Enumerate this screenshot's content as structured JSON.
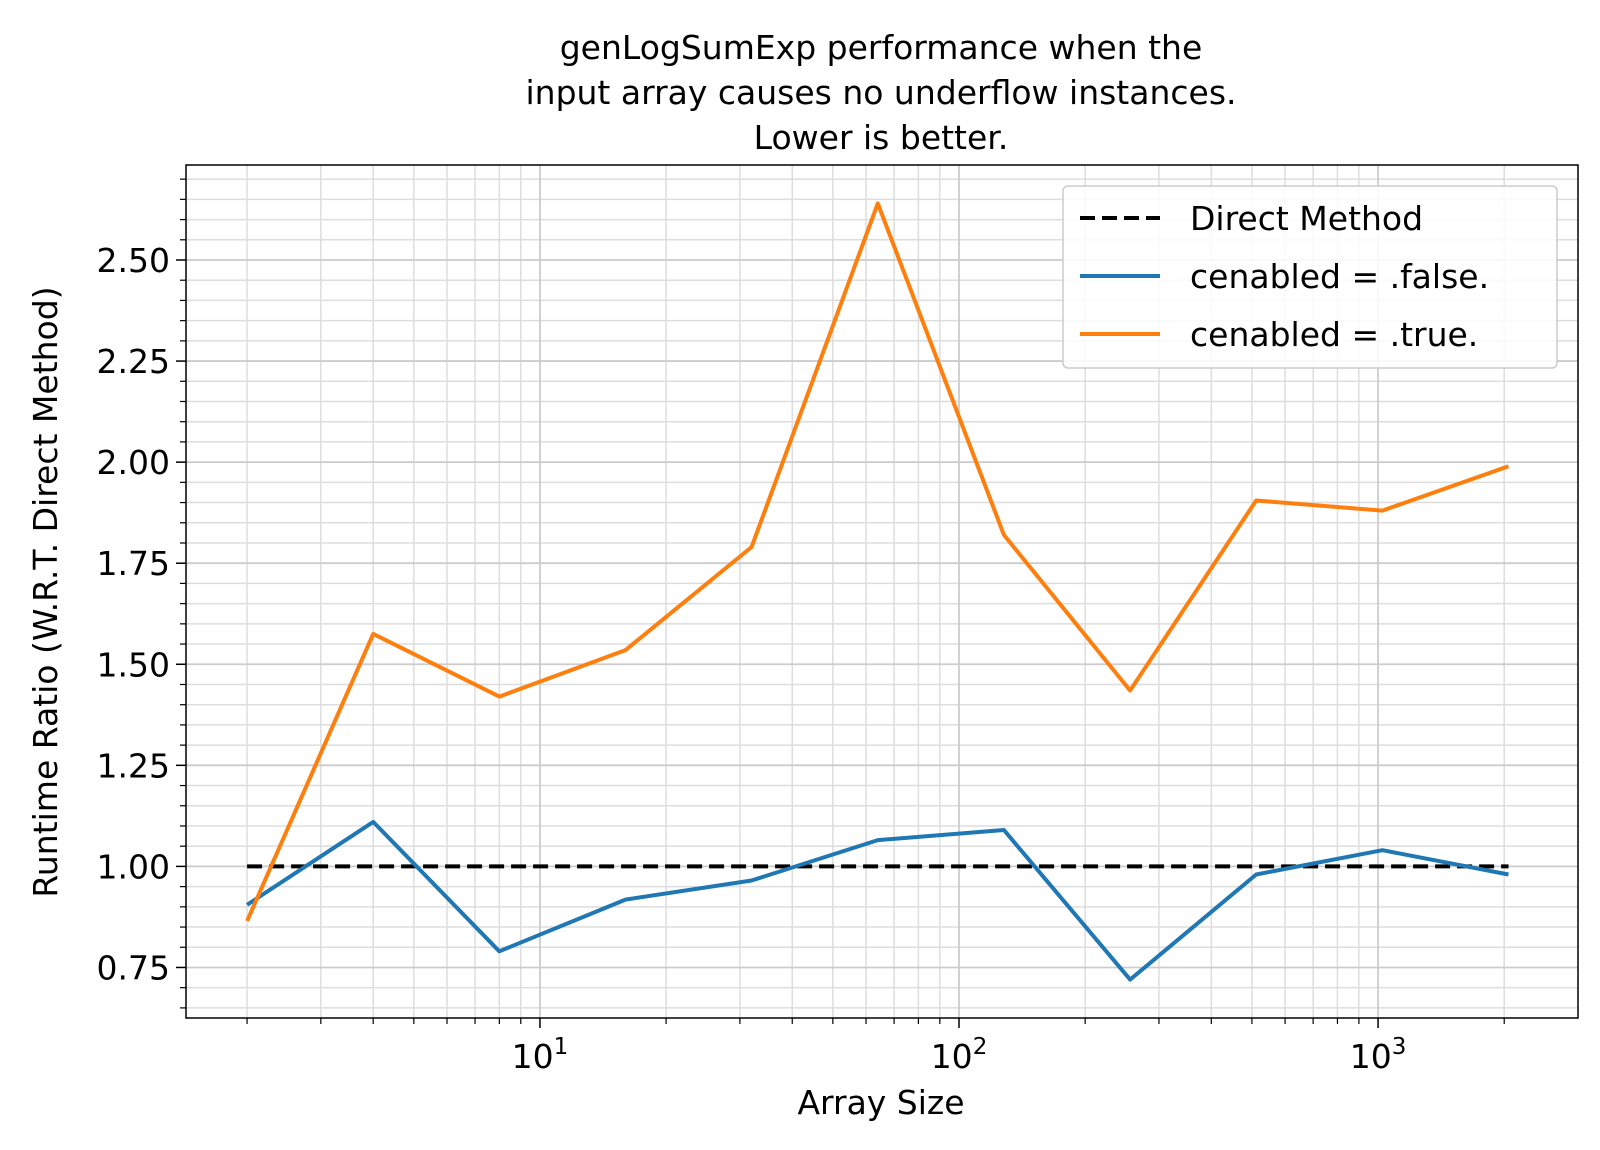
{
  "chart_data": {
    "type": "line",
    "title_lines": [
      "genLogSumExp performance when the",
      "input array causes no underflow instances.",
      "Lower is better."
    ],
    "xlabel": "Array Size",
    "ylabel": "Runtime Ratio (W.R.T. Direct Method)",
    "xscale": "log",
    "xlim": [
      1.43,
      3000
    ],
    "ylim": [
      0.625,
      2.735
    ],
    "x_ticks": [
      {
        "base": "10",
        "exp": "1",
        "value": 10
      },
      {
        "base": "10",
        "exp": "2",
        "value": 100
      },
      {
        "base": "10",
        "exp": "3",
        "value": 1000
      }
    ],
    "y_ticks": [
      "0.75",
      "1.00",
      "1.25",
      "1.50",
      "1.75",
      "2.00",
      "2.25",
      "2.50"
    ],
    "grid": true,
    "legend_position": "top-right",
    "x": [
      2,
      4,
      8,
      16,
      32,
      64,
      128,
      256,
      512,
      1024,
      2048
    ],
    "series": [
      {
        "name": "Direct Method",
        "color": "#000000",
        "dash": true,
        "values": [
          1.0,
          1.0,
          1.0,
          1.0,
          1.0,
          1.0,
          1.0,
          1.0,
          1.0,
          1.0,
          1.0
        ]
      },
      {
        "name": "cenabled = .false.",
        "color": "#1f77b4",
        "dash": false,
        "values": [
          0.905,
          1.11,
          0.79,
          0.918,
          0.965,
          1.065,
          1.09,
          0.72,
          0.98,
          1.04,
          0.98
        ]
      },
      {
        "name": "cenabled = .true.",
        "color": "#ff7f0e",
        "dash": false,
        "values": [
          0.865,
          1.575,
          1.42,
          1.535,
          1.79,
          2.64,
          1.82,
          1.435,
          1.905,
          1.88,
          1.99
        ]
      }
    ]
  }
}
